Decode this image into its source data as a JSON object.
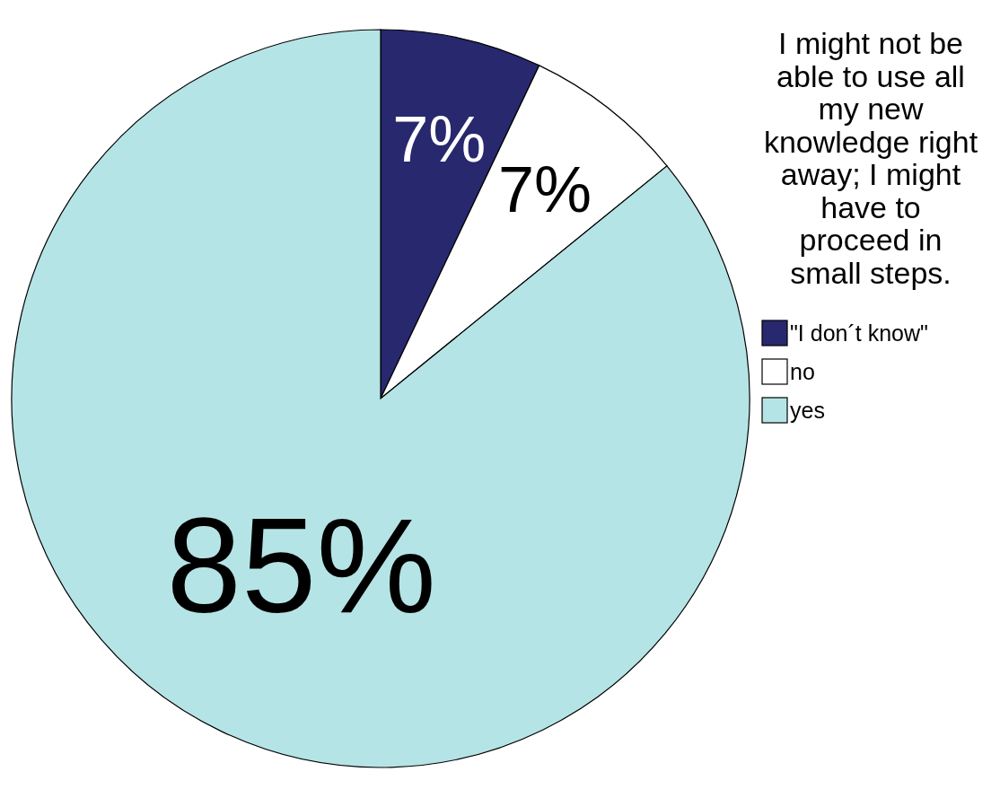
{
  "chart_data": {
    "type": "pie",
    "title": "I might not be able to use all my new knowledge right away; I might have to proceed in small steps.",
    "categories": [
      "\"I don´t know\"",
      "no",
      "yes"
    ],
    "values": [
      7,
      7,
      85
    ],
    "colors": [
      "#27286e",
      "#ffffff",
      "#b5e4e6"
    ],
    "value_labels": [
      "7%",
      "7%",
      "85%"
    ],
    "legend": "right"
  }
}
